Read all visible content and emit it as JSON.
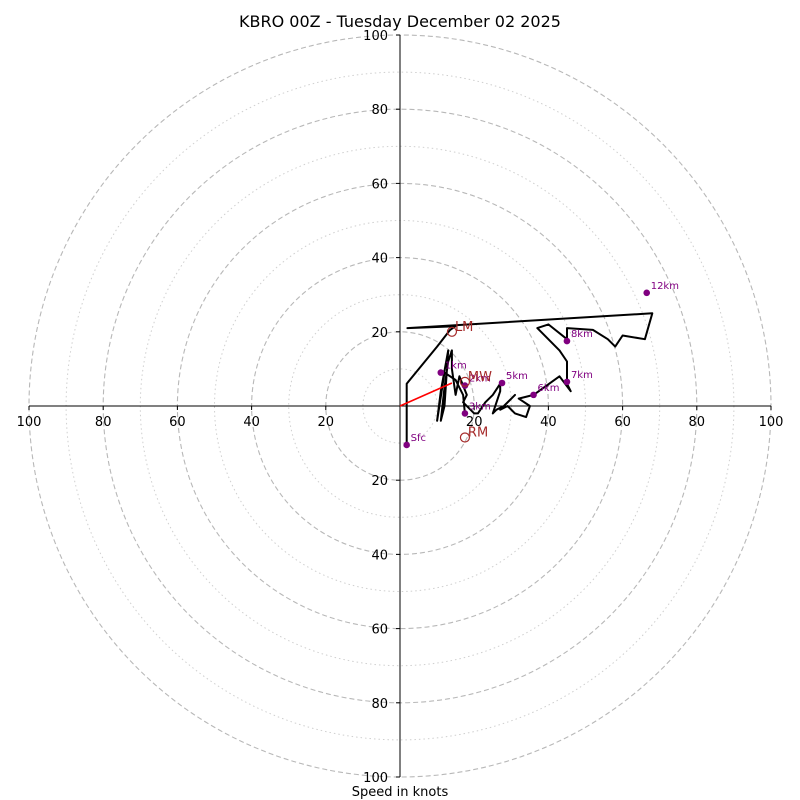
{
  "chart_data": {
    "type": "hodograph",
    "title": "KBRO 00Z - Tuesday December 02 2025",
    "xlabel": "Speed in knots",
    "units": "knots",
    "max_speed": 100,
    "major_rings": [
      20,
      40,
      60,
      80,
      100
    ],
    "minor_rings": [
      10,
      30,
      50,
      70,
      90
    ],
    "tick_labels": {
      "left": [
        "100",
        "80",
        "60",
        "40",
        "20"
      ],
      "right": [
        "20",
        "40",
        "60",
        "80",
        "100"
      ],
      "top": [
        "100",
        "80",
        "60",
        "40",
        "20"
      ],
      "bottom": [
        "20",
        "40",
        "60",
        "80",
        "100"
      ]
    },
    "trace": [
      [
        1.8,
        -10.5
      ],
      [
        1.8,
        6.0
      ],
      [
        10,
        16
      ],
      [
        13.5,
        20.5
      ],
      [
        15,
        21.5
      ],
      [
        2,
        21
      ],
      [
        68,
        25
      ],
      [
        66,
        18
      ],
      [
        60,
        19
      ],
      [
        58,
        16
      ],
      [
        56,
        18
      ],
      [
        52,
        20.5
      ],
      [
        45,
        21
      ],
      [
        45,
        18
      ],
      [
        40,
        22
      ],
      [
        37,
        21
      ],
      [
        43,
        15
      ],
      [
        45,
        12
      ],
      [
        45,
        9
      ],
      [
        45,
        6
      ],
      [
        46,
        4
      ],
      [
        43,
        8
      ],
      [
        36,
        3
      ],
      [
        32,
        2
      ],
      [
        35,
        0
      ],
      [
        34,
        -3
      ],
      [
        31,
        -2
      ],
      [
        29,
        0
      ],
      [
        27,
        -1
      ],
      [
        29,
        1
      ],
      [
        31,
        3
      ],
      [
        28,
        0
      ],
      [
        26,
        -1
      ],
      [
        25,
        -2
      ],
      [
        27,
        4
      ],
      [
        27,
        6
      ],
      [
        25,
        3
      ],
      [
        23,
        1
      ],
      [
        21,
        -2
      ],
      [
        20,
        -2
      ],
      [
        17,
        1
      ],
      [
        18,
        3
      ],
      [
        16,
        8
      ],
      [
        15,
        3
      ],
      [
        14,
        10
      ],
      [
        14,
        15
      ],
      [
        13,
        12
      ],
      [
        12,
        5
      ],
      [
        11,
        -4
      ],
      [
        12,
        0
      ],
      [
        13,
        15
      ],
      [
        11,
        4
      ],
      [
        10,
        -4
      ],
      [
        12,
        9
      ],
      [
        15,
        7
      ],
      [
        17,
        3
      ],
      [
        17.5,
        -2
      ]
    ],
    "height_markers": [
      {
        "label": "Sfc",
        "u": 1.8,
        "v": -10.5
      },
      {
        "label": "1km",
        "u": 11,
        "v": 9
      },
      {
        "label": "2km",
        "u": 17.5,
        "v": 5.5
      },
      {
        "label": "3km",
        "u": 17.5,
        "v": -2
      },
      {
        "label": "5km",
        "u": 27.5,
        "v": 6.2
      },
      {
        "label": "6km",
        "u": 36,
        "v": 3
      },
      {
        "label": "7km",
        "u": 45,
        "v": 6.5
      },
      {
        "label": "8km",
        "u": 45,
        "v": 17.5
      },
      {
        "label": "12km",
        "u": 66.5,
        "v": 30.5
      }
    ],
    "storm_motion": [
      {
        "label": "LM",
        "u": 14,
        "v": 20
      },
      {
        "label": "RM",
        "u": 17.5,
        "v": -8.5
      },
      {
        "label": "MW",
        "u": 17.5,
        "v": 6.5
      }
    ],
    "bunkers_vector": {
      "from": [
        0,
        0
      ],
      "to": [
        14,
        6.2
      ]
    },
    "colors": {
      "trace": "#000000",
      "markers": "#800080",
      "storm_motion": "#a52a2a",
      "bunkers": "#ff0000",
      "grid": "#b8b8b8"
    }
  }
}
